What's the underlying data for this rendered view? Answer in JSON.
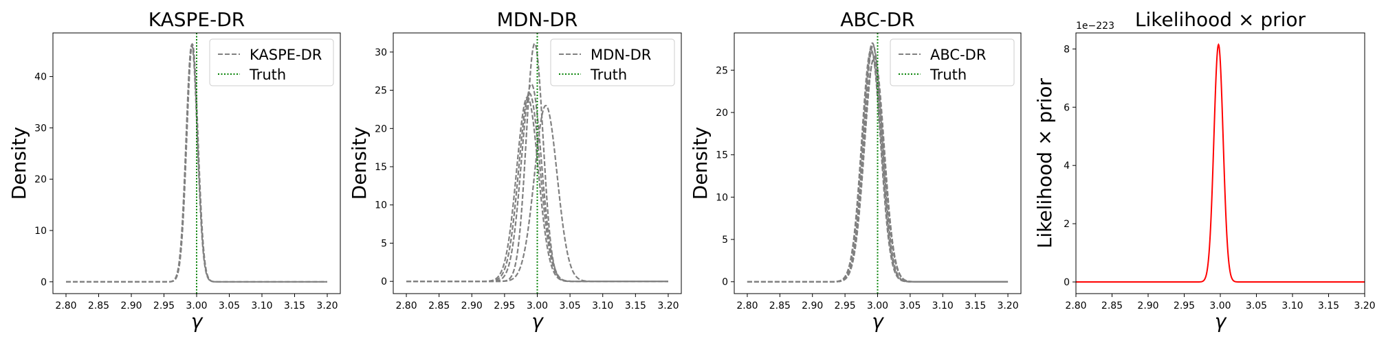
{
  "chart_data": [
    {
      "type": "line",
      "title": "KASPE-DR",
      "xlabel": "γ",
      "ylabel": "Density",
      "xlim": [
        2.78,
        3.22
      ],
      "ylim": [
        -2.3,
        48.5
      ],
      "xticks": [
        2.8,
        2.85,
        2.9,
        2.95,
        3.0,
        3.05,
        3.1,
        3.15,
        3.2
      ],
      "xtick_labels": [
        "2.80",
        "2.85",
        "2.90",
        "2.95",
        "3.00",
        "3.05",
        "3.10",
        "3.15",
        "3.20"
      ],
      "yticks": [
        0,
        10,
        20,
        30,
        40
      ],
      "ytick_labels": [
        "0",
        "10",
        "20",
        "30",
        "40"
      ],
      "legend": {
        "position": "top-right",
        "entries": [
          "KASPE-DR",
          "Truth"
        ]
      },
      "truth": 3.0,
      "curve_color": "#808080",
      "truth_color": "#008000",
      "x_range": [
        2.8,
        3.2
      ],
      "curves": [
        {
          "mu": 2.993,
          "sigma": 0.00862,
          "peak": 46.3
        },
        {
          "mu": 2.9935,
          "sigma": 0.00862,
          "peak": 46.3
        },
        {
          "mu": 2.9925,
          "sigma": 0.00865,
          "peak": 46.1
        }
      ]
    },
    {
      "type": "line",
      "title": "MDN-DR",
      "xlabel": "γ",
      "ylabel": "Density",
      "xlim": [
        2.78,
        3.22
      ],
      "ylim": [
        -1.6,
        32.5
      ],
      "xticks": [
        2.8,
        2.85,
        2.9,
        2.95,
        3.0,
        3.05,
        3.1,
        3.15,
        3.2
      ],
      "xtick_labels": [
        "2.80",
        "2.85",
        "2.90",
        "2.95",
        "3.00",
        "3.05",
        "3.10",
        "3.15",
        "3.20"
      ],
      "yticks": [
        0,
        5,
        10,
        15,
        20,
        25,
        30
      ],
      "ytick_labels": [
        "0",
        "5",
        "10",
        "15",
        "20",
        "25",
        "30"
      ],
      "legend": {
        "position": "top-right",
        "entries": [
          "MDN-DR",
          "Truth"
        ]
      },
      "truth": 3.0,
      "curve_color": "#808080",
      "truth_color": "#008000",
      "x_range": [
        2.8,
        3.2
      ],
      "curves": [
        {
          "mu": 2.996,
          "sigma": 0.0128,
          "peak": 31.1
        },
        {
          "mu": 2.988,
          "sigma": 0.0162,
          "peak": 24.6
        },
        {
          "mu": 2.991,
          "sigma": 0.0154,
          "peak": 25.8
        },
        {
          "mu": 3.013,
          "sigma": 0.0173,
          "peak": 23.0
        },
        {
          "mu": 2.985,
          "sigma": 0.0165,
          "peak": 24.1
        }
      ]
    },
    {
      "type": "line",
      "title": "ABC-DR",
      "xlabel": "γ",
      "ylabel": "Density",
      "xlim": [
        2.78,
        3.22
      ],
      "ylim": [
        -1.4,
        29.4
      ],
      "xticks": [
        2.8,
        2.85,
        2.9,
        2.95,
        3.0,
        3.05,
        3.1,
        3.15,
        3.2
      ],
      "xtick_labels": [
        "2.80",
        "2.85",
        "2.90",
        "2.95",
        "3.00",
        "3.05",
        "3.10",
        "3.15",
        "3.20"
      ],
      "yticks": [
        0,
        5,
        10,
        15,
        20,
        25
      ],
      "ytick_labels": [
        "0",
        "5",
        "10",
        "15",
        "20",
        "25"
      ],
      "legend": {
        "position": "top-right",
        "entries": [
          "ABC-DR",
          "Truth"
        ]
      },
      "truth": 3.0,
      "curve_color": "#808080",
      "truth_color": "#008000",
      "x_range": [
        2.8,
        3.2
      ],
      "curves": [
        {
          "mu": 2.993,
          "sigma": 0.0143,
          "peak": 27.9
        },
        {
          "mu": 2.991,
          "sigma": 0.0147,
          "peak": 27.1
        },
        {
          "mu": 2.995,
          "sigma": 0.015,
          "peak": 26.6
        },
        {
          "mu": 2.992,
          "sigma": 0.0141,
          "peak": 28.2
        },
        {
          "mu": 2.994,
          "sigma": 0.0152,
          "peak": 26.2
        },
        {
          "mu": 2.99,
          "sigma": 0.0145,
          "peak": 27.4
        }
      ]
    },
    {
      "type": "line",
      "title": "Likelihood × prior",
      "xlabel": "γ",
      "ylabel": "Likelihood × prior",
      "xlim": [
        2.8,
        3.2
      ],
      "ylim": [
        -0.4,
        8.55
      ],
      "xticks": [
        2.8,
        2.85,
        2.9,
        2.95,
        3.0,
        3.05,
        3.1,
        3.15,
        3.2
      ],
      "xtick_labels": [
        "2.80",
        "2.85",
        "2.90",
        "2.95",
        "3.00",
        "3.05",
        "3.10",
        "3.15",
        "3.20"
      ],
      "yticks": [
        0,
        2,
        4,
        6,
        8
      ],
      "ytick_labels": [
        "0",
        "2",
        "4",
        "6",
        "8"
      ],
      "scale_label": "1e−223",
      "curve_color": "#ff0000",
      "x_range": [
        2.8,
        3.2
      ],
      "curves": [
        {
          "mu": 2.9975,
          "sigma": 0.0064,
          "peak": 8.15
        }
      ]
    }
  ]
}
